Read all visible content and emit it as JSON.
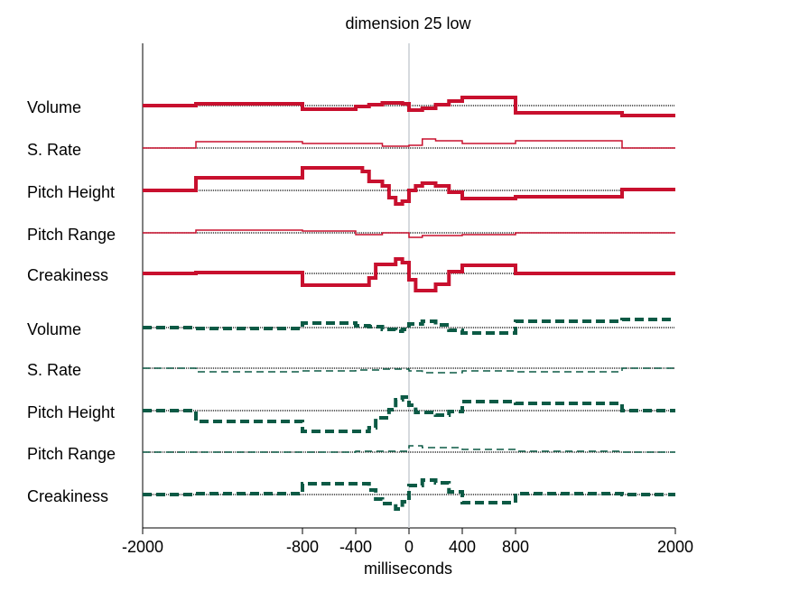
{
  "chart_data": {
    "type": "line",
    "title": "dimension 25 low",
    "xlabel": "milliseconds",
    "xlim": [
      -2000,
      2000
    ],
    "x_ticks": [
      -2000,
      -800,
      -400,
      0,
      400,
      800,
      2000
    ],
    "x_tick_labels": [
      "-2000",
      "-800",
      "-400",
      "0",
      "400",
      "800",
      "2000"
    ],
    "colors": {
      "high": "#c8102e",
      "low": "#0c5a45",
      "baseline": "#000000",
      "zero_line": "#c9cdd3"
    },
    "rows": [
      {
        "label": "Volume",
        "group": "red",
        "width": 4,
        "dash": false,
        "steps": [
          [
            -2000,
            0
          ],
          [
            -1600,
            0.2
          ],
          [
            -800,
            -0.4
          ],
          [
            -400,
            -0.1
          ],
          [
            -300,
            0.1
          ],
          [
            -200,
            0.3
          ],
          [
            -50,
            0.2
          ],
          [
            0,
            -0.5
          ],
          [
            100,
            -0.3
          ],
          [
            200,
            0.1
          ],
          [
            300,
            0.5
          ],
          [
            400,
            0.9
          ],
          [
            800,
            -0.8
          ],
          [
            1600,
            -1.1
          ],
          [
            2000,
            -1.1
          ]
        ]
      },
      {
        "label": "S. Rate",
        "group": "red",
        "width": 1.5,
        "dash": false,
        "steps": [
          [
            -2000,
            0
          ],
          [
            -1600,
            0.1
          ],
          [
            -1600,
            0.7
          ],
          [
            -800,
            0.5
          ],
          [
            -400,
            0.5
          ],
          [
            -200,
            0.2
          ],
          [
            0,
            0.3
          ],
          [
            100,
            1.0
          ],
          [
            200,
            0.8
          ],
          [
            400,
            0.5
          ],
          [
            800,
            0.8
          ],
          [
            1600,
            0
          ],
          [
            2000,
            0
          ]
        ]
      },
      {
        "label": "Pitch Height",
        "group": "red",
        "width": 4,
        "dash": false,
        "steps": [
          [
            -2000,
            0
          ],
          [
            -1600,
            1.4
          ],
          [
            -800,
            2.5
          ],
          [
            -350,
            2.1
          ],
          [
            -300,
            1.0
          ],
          [
            -200,
            0.5
          ],
          [
            -150,
            -0.8
          ],
          [
            -100,
            -1.5
          ],
          [
            -50,
            -1.2
          ],
          [
            0,
            0
          ],
          [
            50,
            0.5
          ],
          [
            100,
            0.8
          ],
          [
            200,
            0.5
          ],
          [
            300,
            -0.2
          ],
          [
            400,
            -0.9
          ],
          [
            800,
            -0.7
          ],
          [
            1600,
            0.1
          ],
          [
            2000,
            0.1
          ]
        ]
      },
      {
        "label": "Pitch Range",
        "group": "red",
        "width": 1.5,
        "dash": false,
        "steps": [
          [
            -2000,
            0
          ],
          [
            -1600,
            0.3
          ],
          [
            -800,
            0.2
          ],
          [
            -400,
            -0.2
          ],
          [
            -200,
            0
          ],
          [
            0,
            -0.5
          ],
          [
            100,
            -0.3
          ],
          [
            400,
            -0.2
          ],
          [
            800,
            0
          ],
          [
            2000,
            0
          ]
        ]
      },
      {
        "label": "Creakiness",
        "group": "red",
        "width": 4,
        "dash": false,
        "steps": [
          [
            -2000,
            0
          ],
          [
            -1600,
            0.1
          ],
          [
            -800,
            -1.3
          ],
          [
            -300,
            -0.5
          ],
          [
            -250,
            1.0
          ],
          [
            -100,
            1.6
          ],
          [
            -50,
            1.2
          ],
          [
            0,
            -0.7
          ],
          [
            50,
            -1.9
          ],
          [
            200,
            -1.2
          ],
          [
            300,
            0.2
          ],
          [
            400,
            0.9
          ],
          [
            800,
            0
          ],
          [
            1600,
            0
          ],
          [
            2000,
            0
          ]
        ]
      },
      {
        "label": "Volume",
        "group": "green",
        "width": 4,
        "dash": true,
        "steps": [
          [
            -2000,
            0
          ],
          [
            -1600,
            -0.1
          ],
          [
            -800,
            0.5
          ],
          [
            -400,
            0.2
          ],
          [
            -300,
            0.1
          ],
          [
            -200,
            -0.2
          ],
          [
            -100,
            -0.4
          ],
          [
            -50,
            -0.2
          ],
          [
            0,
            0.4
          ],
          [
            100,
            0.7
          ],
          [
            200,
            0.3
          ],
          [
            300,
            -0.3
          ],
          [
            400,
            -0.6
          ],
          [
            800,
            0.7
          ],
          [
            1600,
            0.9
          ],
          [
            2000,
            0.9
          ]
        ]
      },
      {
        "label": "S. Rate",
        "group": "green",
        "width": 1.5,
        "dash": true,
        "steps": [
          [
            -2000,
            0
          ],
          [
            -1600,
            -0.4
          ],
          [
            -800,
            -0.3
          ],
          [
            -400,
            -0.2
          ],
          [
            -200,
            -0.1
          ],
          [
            0,
            -0.3
          ],
          [
            100,
            -0.5
          ],
          [
            400,
            -0.3
          ],
          [
            800,
            -0.4
          ],
          [
            1600,
            0
          ],
          [
            2000,
            0
          ]
        ]
      },
      {
        "label": "Pitch Height",
        "group": "green",
        "width": 4,
        "dash": true,
        "steps": [
          [
            -2000,
            0
          ],
          [
            -1600,
            -1.2
          ],
          [
            -800,
            -2.3
          ],
          [
            -300,
            -1.9
          ],
          [
            -250,
            -0.8
          ],
          [
            -150,
            0.1
          ],
          [
            -100,
            1.2
          ],
          [
            -50,
            1.5
          ],
          [
            0,
            0.6
          ],
          [
            50,
            -0.2
          ],
          [
            200,
            -0.5
          ],
          [
            300,
            -0.1
          ],
          [
            400,
            1.0
          ],
          [
            800,
            0.8
          ],
          [
            1600,
            0
          ],
          [
            2000,
            0
          ]
        ]
      },
      {
        "label": "Pitch Range",
        "group": "green",
        "width": 1.5,
        "dash": true,
        "steps": [
          [
            -2000,
            0
          ],
          [
            -1600,
            0
          ],
          [
            -400,
            0.1
          ],
          [
            0,
            0.7
          ],
          [
            100,
            0.5
          ],
          [
            400,
            0.3
          ],
          [
            800,
            0.1
          ],
          [
            1600,
            0
          ],
          [
            2000,
            0
          ]
        ]
      },
      {
        "label": "Creakiness",
        "group": "green",
        "width": 4,
        "dash": true,
        "steps": [
          [
            -2000,
            0
          ],
          [
            -1600,
            0.1
          ],
          [
            -800,
            1.2
          ],
          [
            -300,
            0.5
          ],
          [
            -250,
            -0.5
          ],
          [
            -200,
            -1.0
          ],
          [
            -100,
            -1.6
          ],
          [
            -50,
            -0.8
          ],
          [
            0,
            1.0
          ],
          [
            100,
            1.6
          ],
          [
            200,
            1.3
          ],
          [
            300,
            0.3
          ],
          [
            400,
            -0.9
          ],
          [
            800,
            0.1
          ],
          [
            1600,
            0
          ],
          [
            2000,
            0
          ]
        ]
      }
    ]
  }
}
